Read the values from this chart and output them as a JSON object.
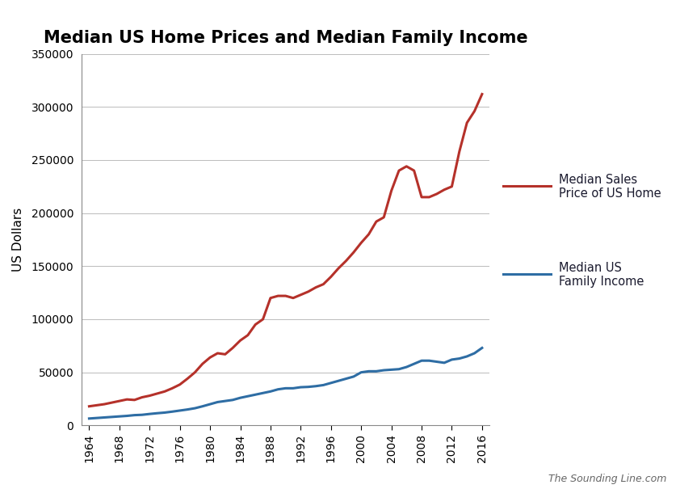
{
  "title": "Median US Home Prices and Median Family Income",
  "ylabel": "US Dollars",
  "watermark": "The Sounding Line.com",
  "home_prices": {
    "label": "Median Sales\nPrice of US Home",
    "color": "#b5312a",
    "years": [
      1964,
      1965,
      1966,
      1967,
      1968,
      1969,
      1970,
      1971,
      1972,
      1973,
      1974,
      1975,
      1976,
      1977,
      1978,
      1979,
      1980,
      1981,
      1982,
      1983,
      1984,
      1985,
      1986,
      1987,
      1988,
      1989,
      1990,
      1991,
      1992,
      1993,
      1994,
      1995,
      1996,
      1997,
      1998,
      1999,
      2000,
      2001,
      2002,
      2003,
      2004,
      2005,
      2006,
      2007,
      2008,
      2009,
      2010,
      2011,
      2012,
      2013,
      2014,
      2015,
      2016
    ],
    "values": [
      18000,
      19000,
      20000,
      21500,
      23000,
      24500,
      24000,
      26500,
      28000,
      30000,
      32000,
      35000,
      38500,
      44000,
      50000,
      58000,
      64000,
      68000,
      67000,
      73000,
      80000,
      85000,
      95000,
      100000,
      120000,
      122000,
      122000,
      120000,
      123000,
      126000,
      130000,
      133000,
      140000,
      148000,
      155000,
      163000,
      172000,
      180000,
      192000,
      196000,
      221000,
      240000,
      244000,
      240000,
      215000,
      215000,
      218000,
      222000,
      225000,
      258000,
      285000,
      296000,
      312000
    ]
  },
  "family_income": {
    "label": "Median US\nFamily Income",
    "color": "#2e6da4",
    "years": [
      1964,
      1965,
      1966,
      1967,
      1968,
      1969,
      1970,
      1971,
      1972,
      1973,
      1974,
      1975,
      1976,
      1977,
      1978,
      1979,
      1980,
      1981,
      1982,
      1983,
      1984,
      1985,
      1986,
      1987,
      1988,
      1989,
      1990,
      1991,
      1992,
      1993,
      1994,
      1995,
      1996,
      1997,
      1998,
      1999,
      2000,
      2001,
      2002,
      2003,
      2004,
      2005,
      2006,
      2007,
      2008,
      2009,
      2010,
      2011,
      2012,
      2013,
      2014,
      2015,
      2016
    ],
    "values": [
      6500,
      7000,
      7500,
      8000,
      8500,
      9000,
      9700,
      10000,
      10800,
      11500,
      12100,
      13000,
      14000,
      15000,
      16200,
      18000,
      20000,
      22000,
      23000,
      24000,
      26000,
      27500,
      29000,
      30500,
      32000,
      34000,
      35000,
      35000,
      36000,
      36300,
      37000,
      38000,
      40000,
      42000,
      44000,
      46000,
      50000,
      51000,
      51000,
      52000,
      52500,
      53000,
      55000,
      58000,
      61000,
      61000,
      60000,
      59000,
      62000,
      63000,
      65000,
      68000,
      73000
    ]
  },
  "xlim": [
    1963,
    2017
  ],
  "ylim": [
    0,
    350000
  ],
  "xticks": [
    1964,
    1968,
    1972,
    1976,
    1980,
    1984,
    1988,
    1992,
    1996,
    2000,
    2004,
    2008,
    2012,
    2016
  ],
  "yticks": [
    0,
    50000,
    100000,
    150000,
    200000,
    250000,
    300000,
    350000
  ],
  "ytick_labels": [
    "0",
    "50000",
    "100000",
    "150000",
    "200000",
    "250000",
    "300000",
    "350000"
  ],
  "line_width": 2.2,
  "background_color": "#ffffff",
  "grid_color": "#bbbbbb",
  "legend_text_color": "#1a1a2e",
  "watermark_color": "#666666",
  "title_fontsize": 15,
  "axis_fontsize": 10,
  "ylabel_fontsize": 11,
  "legend_fontsize": 10.5,
  "watermark_fontsize": 9
}
